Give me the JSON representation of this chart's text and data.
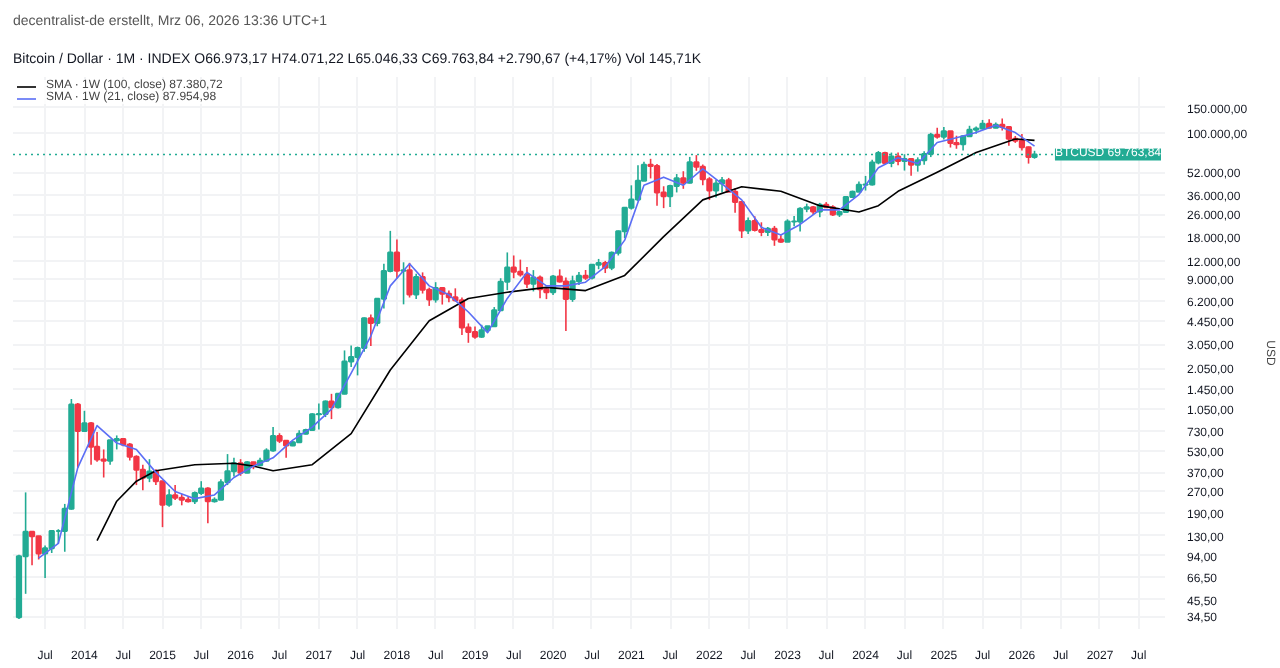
{
  "chart_data": {
    "type": "candlestick",
    "title": "Bitcoin / Dollar · 1M · INDEX",
    "subtitle": "O66.973,17 H74.071,22 L65.046,33 C69.763,84 +2.790,67 (+4,17%) Vol 145,71K",
    "annotations": [
      "decentralist-de erstellt, Mrz 06, 2026 13:36 UTC+1"
    ],
    "ylabel": "USD",
    "log": true,
    "grid": true,
    "legend": "top left",
    "ylim": [
      28,
      250000
    ],
    "yticks": [
      {
        "value": 150000,
        "label": "150.000,00"
      },
      {
        "value": 100000,
        "label": "100.000,00"
      },
      {
        "value": 52000,
        "label": "52.000,00"
      },
      {
        "value": 36000,
        "label": "36.000,00"
      },
      {
        "value": 26000,
        "label": "26.000,00"
      },
      {
        "value": 18000,
        "label": "18.000,00"
      },
      {
        "value": 12000,
        "label": "12.000,00"
      },
      {
        "value": 9000,
        "label": "9.000,00"
      },
      {
        "value": 6200,
        "label": "6.200,00"
      },
      {
        "value": 4450,
        "label": "4.450,00"
      },
      {
        "value": 3050,
        "label": "3.050,00"
      },
      {
        "value": 2050,
        "label": "2.050,00"
      },
      {
        "value": 1450,
        "label": "1.450,00"
      },
      {
        "value": 1050,
        "label": "1.050,00"
      },
      {
        "value": 730,
        "label": "730,00"
      },
      {
        "value": 530,
        "label": "530,00"
      },
      {
        "value": 370,
        "label": "370,00"
      },
      {
        "value": 270,
        "label": "270,00"
      },
      {
        "value": 190,
        "label": "190,00"
      },
      {
        "value": 130,
        "label": "130,00"
      },
      {
        "value": 94,
        "label": "94,00"
      },
      {
        "value": 66.5,
        "label": "66,50"
      },
      {
        "value": 45.5,
        "label": "45,50"
      },
      {
        "value": 34.5,
        "label": "34,50"
      }
    ],
    "xlim": [
      "2013-02",
      "2027-11"
    ],
    "xticks": [
      {
        "value": "2013-07",
        "label": "Jul"
      },
      {
        "value": "2014-01",
        "label": "2014"
      },
      {
        "value": "2014-07",
        "label": "Jul"
      },
      {
        "value": "2015-01",
        "label": "2015"
      },
      {
        "value": "2015-07",
        "label": "Jul"
      },
      {
        "value": "2016-01",
        "label": "2016"
      },
      {
        "value": "2016-07",
        "label": "Jul"
      },
      {
        "value": "2017-01",
        "label": "2017"
      },
      {
        "value": "2017-07",
        "label": "Jul"
      },
      {
        "value": "2018-01",
        "label": "2018"
      },
      {
        "value": "2018-07",
        "label": "Jul"
      },
      {
        "value": "2019-01",
        "label": "2019"
      },
      {
        "value": "2019-07",
        "label": "Jul"
      },
      {
        "value": "2020-01",
        "label": "2020"
      },
      {
        "value": "2020-07",
        "label": "Jul"
      },
      {
        "value": "2021-01",
        "label": "2021"
      },
      {
        "value": "2021-07",
        "label": "Jul"
      },
      {
        "value": "2022-01",
        "label": "2022"
      },
      {
        "value": "2022-07",
        "label": "Jul"
      },
      {
        "value": "2023-01",
        "label": "2023"
      },
      {
        "value": "2023-07",
        "label": "Jul"
      },
      {
        "value": "2024-01",
        "label": "2024"
      },
      {
        "value": "2024-07",
        "label": "Jul"
      },
      {
        "value": "2025-01",
        "label": "2025"
      },
      {
        "value": "2025-07",
        "label": "Jul"
      },
      {
        "value": "2026-01",
        "label": "2026"
      },
      {
        "value": "2026-07",
        "label": "Jul"
      },
      {
        "value": "2027-01",
        "label": "2027"
      },
      {
        "value": "2027-07",
        "label": "Jul"
      }
    ],
    "ref_lines": [
      {
        "axis": "y",
        "value": 69763.84,
        "label": "BTCUSD 69.763,84",
        "color": "#22ab94",
        "line_style": "dotted"
      }
    ],
    "x": [
      "2013-03",
      "2013-04",
      "2013-05",
      "2013-06",
      "2013-07",
      "2013-08",
      "2013-09",
      "2013-10",
      "2013-11",
      "2013-12",
      "2014-01",
      "2014-02",
      "2014-03",
      "2014-04",
      "2014-05",
      "2014-06",
      "2014-07",
      "2014-08",
      "2014-09",
      "2014-10",
      "2014-11",
      "2014-12",
      "2015-01",
      "2015-02",
      "2015-03",
      "2015-04",
      "2015-05",
      "2015-06",
      "2015-07",
      "2015-08",
      "2015-09",
      "2015-10",
      "2015-11",
      "2015-12",
      "2016-01",
      "2016-02",
      "2016-03",
      "2016-04",
      "2016-05",
      "2016-06",
      "2016-07",
      "2016-08",
      "2016-09",
      "2016-10",
      "2016-11",
      "2016-12",
      "2017-01",
      "2017-02",
      "2017-03",
      "2017-04",
      "2017-05",
      "2017-06",
      "2017-07",
      "2017-08",
      "2017-09",
      "2017-10",
      "2017-11",
      "2017-12",
      "2018-01",
      "2018-02",
      "2018-03",
      "2018-04",
      "2018-05",
      "2018-06",
      "2018-07",
      "2018-08",
      "2018-09",
      "2018-10",
      "2018-11",
      "2018-12",
      "2019-01",
      "2019-02",
      "2019-03",
      "2019-04",
      "2019-05",
      "2019-06",
      "2019-07",
      "2019-08",
      "2019-09",
      "2019-10",
      "2019-11",
      "2019-12",
      "2020-01",
      "2020-02",
      "2020-03",
      "2020-04",
      "2020-05",
      "2020-06",
      "2020-07",
      "2020-08",
      "2020-09",
      "2020-10",
      "2020-11",
      "2020-12",
      "2021-01",
      "2021-02",
      "2021-03",
      "2021-04",
      "2021-05",
      "2021-06",
      "2021-07",
      "2021-08",
      "2021-09",
      "2021-10",
      "2021-11",
      "2021-12",
      "2022-01",
      "2022-02",
      "2022-03",
      "2022-04",
      "2022-05",
      "2022-06",
      "2022-07",
      "2022-08",
      "2022-09",
      "2022-10",
      "2022-11",
      "2022-12",
      "2023-01",
      "2023-02",
      "2023-03",
      "2023-04",
      "2023-05",
      "2023-06",
      "2023-07",
      "2023-08",
      "2023-09",
      "2023-10",
      "2023-11",
      "2023-12",
      "2024-01",
      "2024-02",
      "2024-03",
      "2024-04",
      "2024-05",
      "2024-06",
      "2024-07",
      "2024-08",
      "2024-09",
      "2024-10",
      "2024-11",
      "2024-12",
      "2025-01",
      "2025-02",
      "2025-03",
      "2025-04",
      "2025-05",
      "2025-06",
      "2025-07",
      "2025-08",
      "2025-09",
      "2025-10",
      "2025-11",
      "2025-12",
      "2026-01",
      "2026-02",
      "2026-03"
    ],
    "ohlc": [
      [
        34,
        95,
        33,
        93
      ],
      [
        93,
        266,
        50,
        139
      ],
      [
        139,
        140,
        80,
        129
      ],
      [
        129,
        130,
        88,
        97
      ],
      [
        97,
        111,
        65,
        106
      ],
      [
        106,
        142,
        98,
        141
      ],
      [
        141,
        145,
        114,
        141
      ],
      [
        141,
        220,
        100,
        203
      ],
      [
        203,
        1240,
        200,
        1130
      ],
      [
        1130,
        1160,
        400,
        732
      ],
      [
        732,
        1020,
        730,
        830
      ],
      [
        830,
        850,
        420,
        565
      ],
      [
        565,
        720,
        440,
        457
      ],
      [
        457,
        540,
        340,
        448
      ],
      [
        448,
        630,
        420,
        627
      ],
      [
        627,
        680,
        540,
        640
      ],
      [
        640,
        650,
        570,
        585
      ],
      [
        585,
        600,
        450,
        478
      ],
      [
        478,
        490,
        300,
        387
      ],
      [
        387,
        420,
        275,
        338
      ],
      [
        338,
        460,
        315,
        376
      ],
      [
        376,
        390,
        300,
        320
      ],
      [
        320,
        320,
        150,
        217
      ],
      [
        217,
        280,
        210,
        254
      ],
      [
        254,
        300,
        235,
        244
      ],
      [
        244,
        260,
        215,
        236
      ],
      [
        236,
        250,
        225,
        230
      ],
      [
        230,
        270,
        220,
        263
      ],
      [
        263,
        320,
        255,
        284
      ],
      [
        284,
        290,
        160,
        230
      ],
      [
        230,
        245,
        225,
        236
      ],
      [
        236,
        330,
        235,
        314
      ],
      [
        314,
        500,
        300,
        377
      ],
      [
        377,
        470,
        345,
        430
      ],
      [
        430,
        460,
        350,
        368
      ],
      [
        368,
        445,
        365,
        437
      ],
      [
        437,
        440,
        390,
        416
      ],
      [
        416,
        470,
        410,
        448
      ],
      [
        448,
        550,
        440,
        531
      ],
      [
        531,
        780,
        520,
        673
      ],
      [
        673,
        705,
        600,
        624
      ],
      [
        624,
        630,
        470,
        575
      ],
      [
        575,
        620,
        570,
        609
      ],
      [
        609,
        740,
        605,
        700
      ],
      [
        700,
        760,
        690,
        745
      ],
      [
        745,
        980,
        740,
        963
      ],
      [
        963,
        1150,
        750,
        970
      ],
      [
        970,
        1210,
        920,
        1190
      ],
      [
        1190,
        1350,
        890,
        1080
      ],
      [
        1080,
        1350,
        1060,
        1350
      ],
      [
        1350,
        2760,
        1340,
        2300
      ],
      [
        2300,
        3000,
        2100,
        2480
      ],
      [
        2480,
        2940,
        1830,
        2875
      ],
      [
        2875,
        4750,
        2700,
        4700
      ],
      [
        4700,
        5000,
        2970,
        4340
      ],
      [
        4340,
        6470,
        4110,
        6470
      ],
      [
        6470,
        11500,
        5500,
        10200
      ],
      [
        10200,
        19800,
        10000,
        13860
      ],
      [
        13860,
        17200,
        9000,
        10260
      ],
      [
        10260,
        11800,
        5900,
        10330
      ],
      [
        10330,
        11700,
        6600,
        6930
      ],
      [
        6930,
        9750,
        6430,
        9240
      ],
      [
        9240,
        9990,
        7050,
        7500
      ],
      [
        7500,
        7770,
        5750,
        6400
      ],
      [
        6400,
        8500,
        6070,
        7730
      ],
      [
        7730,
        7750,
        5880,
        7030
      ],
      [
        7030,
        7400,
        6100,
        6630
      ],
      [
        6630,
        7680,
        6180,
        6320
      ],
      [
        6320,
        6600,
        3560,
        4020
      ],
      [
        4020,
        4310,
        3130,
        3740
      ],
      [
        3740,
        4100,
        3350,
        3460
      ],
      [
        3460,
        4210,
        3400,
        3850
      ],
      [
        3850,
        4130,
        3700,
        4110
      ],
      [
        4110,
        5640,
        4080,
        5350
      ],
      [
        5350,
        9070,
        5330,
        8570
      ],
      [
        8570,
        13880,
        7450,
        10820
      ],
      [
        10820,
        13200,
        9070,
        10090
      ],
      [
        10090,
        12330,
        9320,
        9630
      ],
      [
        9630,
        10910,
        7730,
        8300
      ],
      [
        8300,
        10370,
        7300,
        9200
      ],
      [
        9200,
        9500,
        6530,
        7570
      ],
      [
        7570,
        7750,
        6430,
        7190
      ],
      [
        7190,
        9580,
        6870,
        9350
      ],
      [
        9350,
        10500,
        8450,
        8600
      ],
      [
        8600,
        9190,
        3800,
        6440
      ],
      [
        6440,
        9460,
        6150,
        8630
      ],
      [
        8630,
        10070,
        8110,
        9450
      ],
      [
        9450,
        10390,
        8830,
        9140
      ],
      [
        9140,
        11450,
        8900,
        11350
      ],
      [
        11350,
        12470,
        10520,
        11660
      ],
      [
        11660,
        12070,
        9880,
        10780
      ],
      [
        10780,
        14100,
        10370,
        13800
      ],
      [
        13800,
        19900,
        13200,
        19700
      ],
      [
        19700,
        29300,
        17600,
        28990
      ],
      [
        28990,
        41950,
        28130,
        33140
      ],
      [
        33140,
        58350,
        32300,
        45240
      ],
      [
        45240,
        61800,
        45000,
        58800
      ],
      [
        58800,
        64900,
        47000,
        57750
      ],
      [
        57750,
        59600,
        30000,
        37330
      ],
      [
        37330,
        41300,
        28800,
        35040
      ],
      [
        35040,
        42400,
        29300,
        41460
      ],
      [
        41460,
        50500,
        37300,
        47130
      ],
      [
        47130,
        52920,
        39600,
        43820
      ],
      [
        43820,
        67000,
        43300,
        61320
      ],
      [
        61320,
        69000,
        53300,
        57000
      ],
      [
        57000,
        59100,
        42000,
        46300
      ],
      [
        46300,
        47990,
        32900,
        38480
      ],
      [
        38480,
        45800,
        34300,
        43190
      ],
      [
        43190,
        48200,
        37200,
        45540
      ],
      [
        45540,
        47400,
        37600,
        37700
      ],
      [
        37700,
        40000,
        26700,
        31800
      ],
      [
        31800,
        31990,
        17600,
        19930
      ],
      [
        19930,
        24700,
        18780,
        23300
      ],
      [
        23300,
        25200,
        19600,
        20050
      ],
      [
        20050,
        22800,
        18150,
        19430
      ],
      [
        19430,
        21100,
        18200,
        20490
      ],
      [
        20490,
        21480,
        15480,
        17170
      ],
      [
        17170,
        18400,
        16260,
        16550
      ],
      [
        16550,
        23950,
        16500,
        23140
      ],
      [
        23140,
        25250,
        21400,
        23150
      ],
      [
        23150,
        29200,
        19570,
        28480
      ],
      [
        28480,
        31000,
        26940,
        29230
      ],
      [
        29230,
        29820,
        25800,
        27220
      ],
      [
        27220,
        31400,
        24800,
        30480
      ],
      [
        30480,
        31800,
        28860,
        29230
      ],
      [
        29230,
        30200,
        25300,
        25940
      ],
      [
        25940,
        27490,
        24900,
        26970
      ],
      [
        26970,
        35200,
        26560,
        34660
      ],
      [
        34660,
        38420,
        34100,
        37720
      ],
      [
        37720,
        44700,
        37600,
        42280
      ],
      [
        42280,
        48970,
        38500,
        42580
      ],
      [
        42580,
        64000,
        41880,
        61130
      ],
      [
        61130,
        73800,
        59300,
        71330
      ],
      [
        71330,
        72800,
        59100,
        60640
      ],
      [
        60640,
        71950,
        56550,
        67500
      ],
      [
        67500,
        71950,
        58400,
        62680
      ],
      [
        62680,
        70000,
        53500,
        64630
      ],
      [
        64630,
        65100,
        49100,
        58970
      ],
      [
        58970,
        66500,
        52550,
        63330
      ],
      [
        63330,
        73600,
        58900,
        70220
      ],
      [
        70220,
        99600,
        66800,
        96400
      ],
      [
        96400,
        108300,
        90500,
        93430
      ],
      [
        93430,
        109600,
        89200,
        102400
      ],
      [
        102400,
        102700,
        78200,
        84350
      ],
      [
        84350,
        95000,
        76600,
        82550
      ],
      [
        82550,
        95750,
        74400,
        94200
      ],
      [
        94200,
        111900,
        93400,
        104600
      ],
      [
        104600,
        110500,
        98200,
        107100
      ],
      [
        107100,
        123200,
        105200,
        115700
      ],
      [
        115700,
        124450,
        107300,
        108200
      ],
      [
        108200,
        117900,
        107300,
        114000
      ],
      [
        114000,
        126200,
        103500,
        109500
      ],
      [
        109500,
        111200,
        80600,
        90400
      ],
      [
        90400,
        94600,
        84400,
        87500
      ],
      [
        87500,
        97900,
        74500,
        78700
      ],
      [
        78700,
        79500,
        60000,
        66970
      ],
      [
        66973.17,
        74071.22,
        65046.33,
        69763.84
      ]
    ],
    "series": [
      {
        "type": "line",
        "name": "SMA · 1W (100, close) 87.380,72",
        "color": "#000000",
        "x": [
          "2014-03",
          "2014-06",
          "2014-09",
          "2014-12",
          "2015-06",
          "2015-12",
          "2016-03",
          "2016-06",
          "2016-12",
          "2017-06",
          "2017-12",
          "2018-06",
          "2018-12",
          "2019-06",
          "2019-12",
          "2020-06",
          "2020-12",
          "2021-06",
          "2021-12",
          "2022-06",
          "2022-12",
          "2023-06",
          "2023-12",
          "2024-03",
          "2024-06",
          "2024-12",
          "2025-06",
          "2025-12",
          "2026-03"
        ],
        "values": [
          120,
          230,
          320,
          380,
          420,
          430,
          410,
          380,
          420,
          700,
          2000,
          4500,
          6500,
          7200,
          7800,
          7400,
          9500,
          18000,
          33000,
          41000,
          38000,
          30000,
          27000,
          30000,
          38000,
          52000,
          72000,
          90000,
          88000
        ]
      },
      {
        "type": "line",
        "name": "SMA · 1W (21, close) 87.954,98",
        "color": "#5b6ef5",
        "x": [
          "2013-06",
          "2013-09",
          "2013-12",
          "2014-03",
          "2014-06",
          "2014-09",
          "2014-12",
          "2015-03",
          "2015-06",
          "2015-09",
          "2015-12",
          "2016-03",
          "2016-06",
          "2016-09",
          "2016-12",
          "2017-03",
          "2017-06",
          "2017-09",
          "2017-12",
          "2018-03",
          "2018-06",
          "2018-09",
          "2018-12",
          "2019-03",
          "2019-06",
          "2019-09",
          "2019-12",
          "2020-03",
          "2020-06",
          "2020-09",
          "2020-12",
          "2021-03",
          "2021-06",
          "2021-09",
          "2021-12",
          "2022-03",
          "2022-06",
          "2022-09",
          "2022-12",
          "2023-03",
          "2023-06",
          "2023-09",
          "2023-12",
          "2024-03",
          "2024-06",
          "2024-09",
          "2024-12",
          "2025-03",
          "2025-06",
          "2025-09",
          "2025-12",
          "2026-03"
        ],
        "values": [
          90,
          115,
          400,
          800,
          600,
          540,
          370,
          270,
          240,
          255,
          340,
          410,
          470,
          630,
          780,
          1050,
          1900,
          3500,
          8000,
          11500,
          8000,
          6900,
          5200,
          3700,
          6500,
          10000,
          8000,
          8000,
          8500,
          11000,
          17000,
          42000,
          48000,
          42000,
          55000,
          43000,
          33000,
          21000,
          18500,
          22000,
          28000,
          28000,
          36000,
          56000,
          66000,
          60000,
          85000,
          92000,
          100000,
          113000,
          100000,
          80000
        ]
      }
    ]
  }
}
